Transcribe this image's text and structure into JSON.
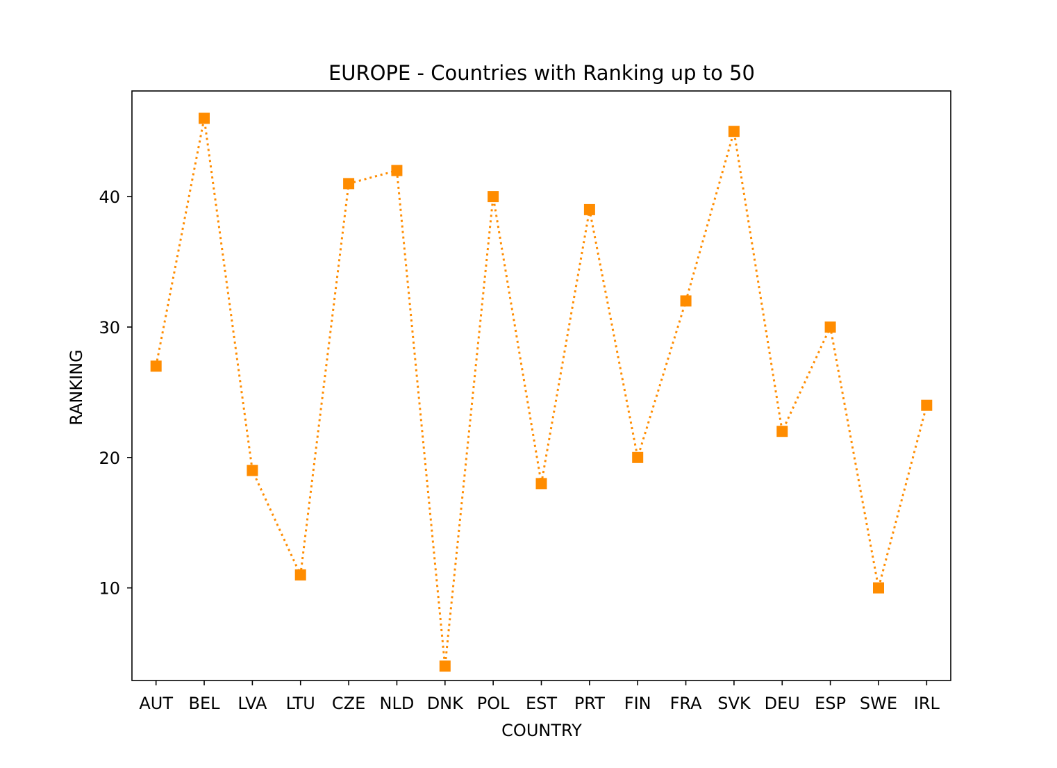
{
  "chart_data": {
    "type": "line",
    "title": "EUROPE - Countries with Ranking up to 50",
    "xlabel": "COUNTRY",
    "ylabel": "RANKING",
    "categories": [
      "AUT",
      "BEL",
      "LVA",
      "LTU",
      "CZE",
      "NLD",
      "DNK",
      "POL",
      "EST",
      "PRT",
      "FIN",
      "FRA",
      "SVK",
      "DEU",
      "ESP",
      "SWE",
      "IRL"
    ],
    "series": [
      {
        "values": [
          27,
          46,
          19,
          11,
          41,
          42,
          4,
          40,
          18,
          39,
          20,
          32,
          45,
          22,
          30,
          10,
          24
        ],
        "color": "#ff8c00",
        "line_style": "dotted",
        "marker": "square"
      }
    ],
    "ylim": [
      2.9,
      48.1
    ],
    "yticks": [
      10,
      20,
      30,
      40
    ],
    "grid": false,
    "legend": "none"
  }
}
